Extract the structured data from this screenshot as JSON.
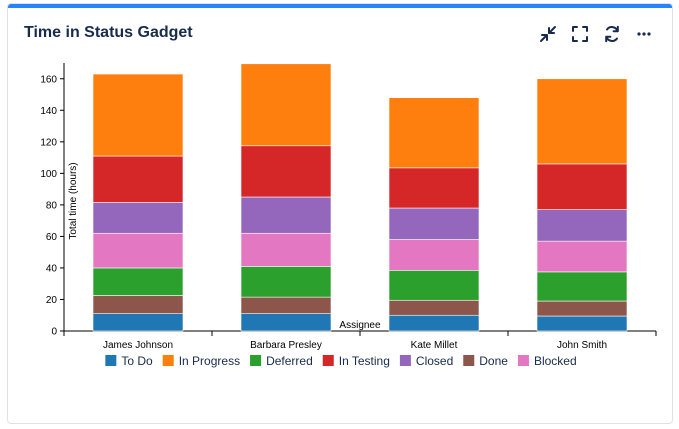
{
  "gadget": {
    "title": "Time in Status Gadget"
  },
  "toolbar": {
    "icons": [
      "collapse-icon",
      "fullscreen-icon",
      "refresh-icon",
      "more-icon"
    ]
  },
  "chart_data": {
    "type": "bar",
    "stacked": true,
    "title": "",
    "xlabel": "Assignee",
    "ylabel": "Total time (hours)",
    "ylim": [
      0,
      170
    ],
    "yticks": [
      0,
      20,
      40,
      60,
      80,
      100,
      120,
      140,
      160
    ],
    "categories": [
      "James Johnson",
      "Barbara Presley",
      "Kate Millet",
      "John Smith"
    ],
    "series": [
      {
        "name": "To Do",
        "color": "#1f77b4",
        "values": [
          11,
          11,
          10,
          9.5
        ]
      },
      {
        "name": "Done",
        "color": "#8c564b",
        "values": [
          11.5,
          10.5,
          9.5,
          9.5
        ]
      },
      {
        "name": "Deferred",
        "color": "#2ca02c",
        "values": [
          17.5,
          19.5,
          19,
          18.5
        ]
      },
      {
        "name": "Blocked",
        "color": "#e377c2",
        "values": [
          22,
          21,
          19.5,
          19.5
        ]
      },
      {
        "name": "Closed",
        "color": "#9467bd",
        "values": [
          19.5,
          23,
          20,
          20
        ]
      },
      {
        "name": "In Testing",
        "color": "#d62728",
        "values": [
          29.5,
          32.5,
          25.5,
          29
        ]
      },
      {
        "name": "In Progress",
        "color": "#ff7f0e",
        "values": [
          52,
          52,
          44.5,
          54
        ]
      }
    ],
    "legend": {
      "placement": "bottom",
      "order": [
        "To Do",
        "In Progress",
        "Deferred",
        "In Testing",
        "Closed",
        "Done",
        "Blocked"
      ]
    },
    "grid": false
  }
}
